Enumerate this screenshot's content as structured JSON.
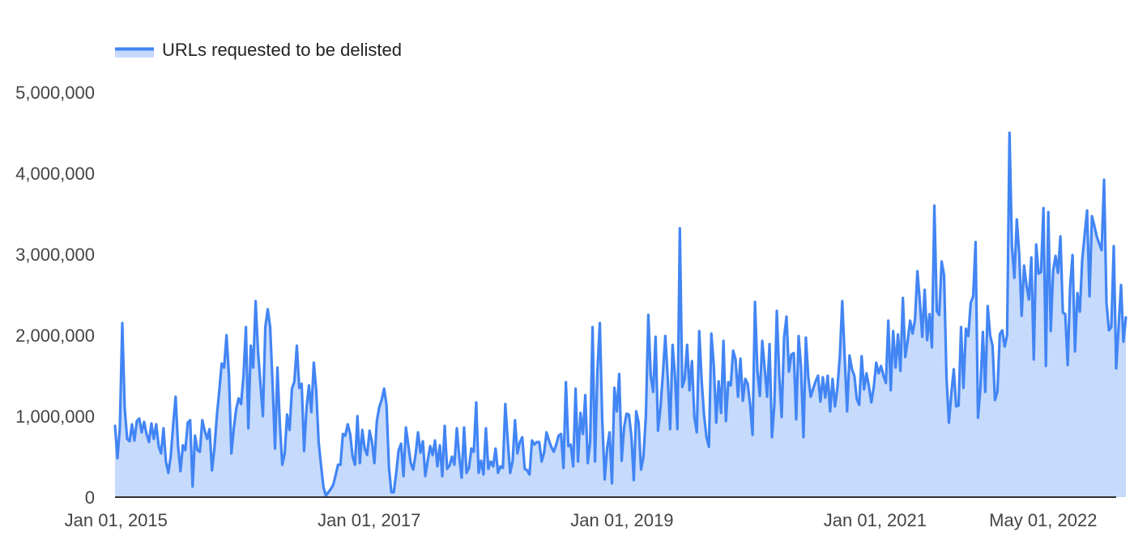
{
  "chart_data": {
    "type": "area",
    "title": "",
    "xlabel": "",
    "ylabel": "",
    "legend": {
      "position": "top-left"
    },
    "series": [
      {
        "name": "URLs requested to be delisted",
        "color": "#4285f4",
        "fill": "#c6dafc",
        "start": "2014-12-29",
        "interval_days": 7,
        "values": [
          880000,
          480000,
          860000,
          2150000,
          1100000,
          720000,
          690000,
          900000,
          700000,
          940000,
          970000,
          800000,
          930000,
          780000,
          680000,
          910000,
          720000,
          900000,
          630000,
          540000,
          850000,
          440000,
          300000,
          510000,
          900000,
          1240000,
          630000,
          320000,
          640000,
          580000,
          920000,
          950000,
          130000,
          760000,
          580000,
          560000,
          950000,
          820000,
          720000,
          840000,
          330000,
          600000,
          1000000,
          1310000,
          1650000,
          1600000,
          2000000,
          1500000,
          540000,
          850000,
          1090000,
          1220000,
          1150000,
          1500000,
          2100000,
          850000,
          1870000,
          1600000,
          2420000,
          1800000,
          1400000,
          1000000,
          2100000,
          2320000,
          2100000,
          1400000,
          600000,
          1600000,
          900000,
          400000,
          540000,
          1020000,
          830000,
          1340000,
          1430000,
          1870000,
          1350000,
          1400000,
          570000,
          1100000,
          1380000,
          1050000,
          1660000,
          1320000,
          680000,
          390000,
          120000,
          20000,
          60000,
          100000,
          150000,
          270000,
          400000,
          400000,
          780000,
          760000,
          900000,
          780000,
          500000,
          400000,
          1000000,
          420000,
          830000,
          600000,
          520000,
          820000,
          680000,
          420000,
          940000,
          1110000,
          1200000,
          1340000,
          1140000,
          370000,
          60000,
          60000,
          300000,
          580000,
          660000,
          260000,
          860000,
          640000,
          420000,
          340000,
          530000,
          800000,
          550000,
          690000,
          260000,
          450000,
          630000,
          520000,
          700000,
          380000,
          640000,
          260000,
          880000,
          350000,
          390000,
          500000,
          400000,
          850000,
          500000,
          240000,
          860000,
          300000,
          360000,
          600000,
          560000,
          1170000,
          300000,
          450000,
          280000,
          850000,
          350000,
          440000,
          380000,
          600000,
          300000,
          380000,
          360000,
          1150000,
          700000,
          300000,
          440000,
          950000,
          540000,
          680000,
          740000,
          350000,
          330000,
          280000,
          700000,
          650000,
          680000,
          680000,
          440000,
          550000,
          800000,
          700000,
          620000,
          560000,
          650000,
          760000,
          780000,
          360000,
          1420000,
          630000,
          650000,
          380000,
          1340000,
          440000,
          1040000,
          780000,
          1260000,
          420000,
          680000,
          2100000,
          440000,
          1560000,
          2150000,
          950000,
          220000,
          600000,
          800000,
          170000,
          1350000,
          1060000,
          1520000,
          450000,
          860000,
          1030000,
          1020000,
          760000,
          210000,
          1060000,
          920000,
          340000,
          500000,
          1010000,
          2250000,
          1500000,
          1300000,
          1980000,
          820000,
          1100000,
          1520000,
          1990000,
          1480000,
          840000,
          1880000,
          1500000,
          840000,
          3320000,
          1360000,
          1460000,
          1880000,
          1320000,
          1680000,
          990000,
          800000,
          2050000,
          1440000,
          1010000,
          740000,
          620000,
          2020000,
          1630000,
          920000,
          1430000,
          1040000,
          1930000,
          940000,
          1420000,
          1380000,
          1810000,
          1700000,
          1240000,
          1710000,
          1190000,
          1460000,
          1400000,
          1140000,
          770000,
          2410000,
          1560000,
          1250000,
          1930000,
          1590000,
          1240000,
          1890000,
          740000,
          1140000,
          2300000,
          1510000,
          990000,
          1970000,
          2230000,
          1550000,
          1760000,
          1780000,
          960000,
          1990000,
          1600000,
          740000,
          1970000,
          1480000,
          1240000,
          1340000,
          1430000,
          1500000,
          1180000,
          1480000,
          1230000,
          1500000,
          1060000,
          1460000,
          1120000,
          1350000,
          1740000,
          2420000,
          1730000,
          1060000,
          1750000,
          1580000,
          1500000,
          1210000,
          1140000,
          1740000,
          1330000,
          1530000,
          1370000,
          1170000,
          1360000,
          1660000,
          1530000,
          1620000,
          1500000,
          1410000,
          2180000,
          1320000,
          2050000,
          1600000,
          2010000,
          1560000,
          2460000,
          1730000,
          1930000,
          2180000,
          2020000,
          2190000,
          2790000,
          2420000,
          1980000,
          2560000,
          1940000,
          2260000,
          1850000,
          3600000,
          2300000,
          2250000,
          2910000,
          2740000,
          1480000,
          920000,
          1280000,
          1580000,
          1120000,
          1130000,
          2100000,
          1350000,
          2080000,
          1990000,
          2400000,
          2480000,
          3150000,
          980000,
          1350000,
          2040000,
          1300000,
          2360000,
          2000000,
          1870000,
          1200000,
          1300000,
          2010000,
          2060000,
          1860000,
          2000000,
          4500000,
          3100000,
          2710000,
          3430000,
          3010000,
          2240000,
          2860000,
          2620000,
          2440000,
          2960000,
          1700000,
          3120000,
          2760000,
          2780000,
          3570000,
          1620000,
          3520000,
          2050000,
          2800000,
          2980000,
          2770000,
          3220000,
          2280000,
          2260000,
          1630000,
          2600000,
          2990000,
          1800000,
          2520000,
          2290000,
          2940000,
          3240000,
          3540000,
          2480000,
          3470000,
          3350000,
          3220000,
          3130000,
          3050000,
          3920000,
          2400000,
          2060000,
          2100000,
          3100000,
          1590000,
          2100000,
          2620000,
          1920000,
          2220000
        ]
      }
    ],
    "x_ticks": [
      "Jan 01, 2015",
      "Jan 01, 2017",
      "Jan 01, 2019",
      "Jan 01, 2021",
      "May 01, 2022"
    ],
    "x_tick_dates": [
      "2015-01-01",
      "2017-01-01",
      "2019-01-01",
      "2021-01-01",
      "2022-05-01"
    ],
    "x_range": [
      "2014-12-29",
      "2022-11-28"
    ],
    "y_ticks": [
      "0",
      "1,000,000",
      "2,000,000",
      "3,000,000",
      "4,000,000",
      "5,000,000"
    ],
    "y_tick_values": [
      0,
      1000000,
      2000000,
      3000000,
      4000000,
      5000000
    ],
    "ylim": [
      0,
      5000000
    ],
    "grid": false
  }
}
